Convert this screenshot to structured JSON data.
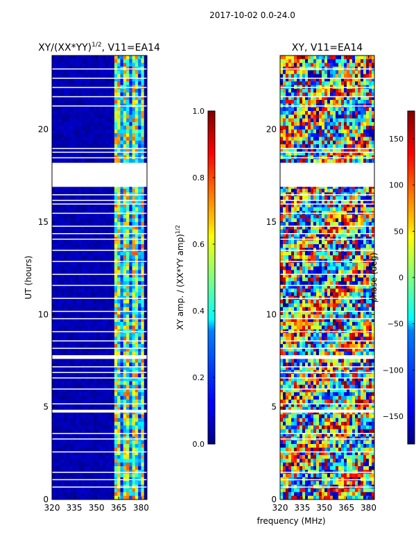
{
  "figure": {
    "suptitle": "2017-10-02 0.0-24.0"
  },
  "chart_data": [
    {
      "type": "heatmap",
      "title_prefix": "XY/(XX*YY)",
      "title_exp": "1/2",
      "title_suffix": ", V11=EA14",
      "xlabel": "",
      "ylabel": "UT (hours)",
      "xlim": [
        320,
        384
      ],
      "ylim": [
        0,
        24
      ],
      "xticks": [
        320,
        335,
        350,
        365,
        380
      ],
      "yticks": [
        0,
        5,
        10,
        15,
        20
      ],
      "colormap": "jet",
      "colorbar": {
        "label_prefix": "XY amp. / (XX*YY amp)",
        "label_exp": "1/2",
        "range": [
          0.0,
          1.0
        ],
        "ticks": [
          "0.0",
          "0.2",
          "0.4",
          "0.6",
          "0.8",
          "1.0"
        ]
      },
      "flagged_ut_ranges": [
        [
          18.2,
          16.9
        ],
        [
          7.8,
          7.6
        ],
        [
          4.85,
          4.7
        ]
      ],
      "bright_band_mhz": [
        363,
        382
      ]
    },
    {
      "type": "heatmap",
      "title": "XY, V11=EA14",
      "xlabel": "frequency (MHz)",
      "ylabel": "",
      "xlim": [
        320,
        384
      ],
      "ylim": [
        0,
        24
      ],
      "xticks": [
        320,
        335,
        350,
        365,
        380
      ],
      "yticks": [
        0,
        5,
        10,
        15,
        20
      ],
      "colormap": "jet",
      "colorbar": {
        "label": "phase (deg)",
        "range": [
          -180,
          180
        ],
        "ticks": [
          "−150",
          "−100",
          "−50",
          "0",
          "50",
          "100",
          "150"
        ]
      },
      "flagged_ut_ranges": [
        [
          18.2,
          16.9
        ],
        [
          7.8,
          7.6
        ],
        [
          4.85,
          4.7
        ]
      ]
    }
  ]
}
